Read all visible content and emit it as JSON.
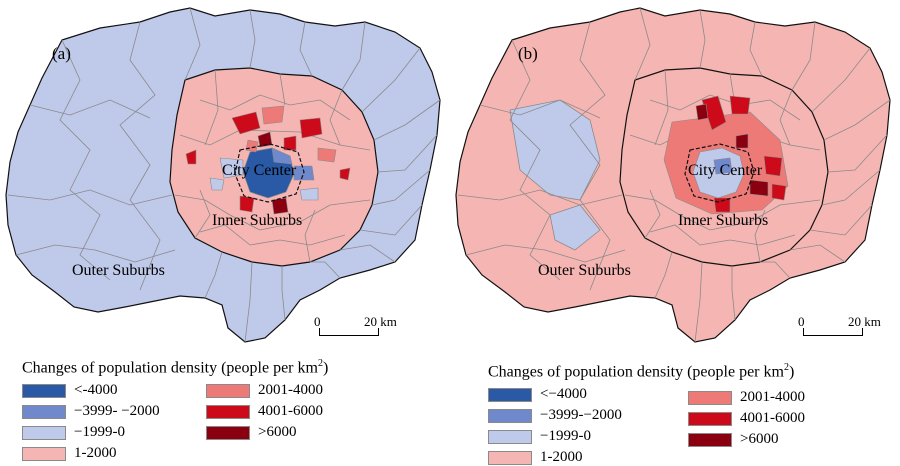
{
  "colors": {
    "lt_neg4000": "#2a5aa6",
    "neg3999_neg2000": "#7088cc",
    "neg1999_0": "#bfc9ea",
    "p1_2000": "#f5b6b3",
    "p2001_4000": "#ee7a78",
    "p4001_6000": "#cc0a1a",
    "gt6000": "#8b0010",
    "boundary": "#8a8a8a",
    "zone_boundary": "#111111"
  },
  "panels": [
    {
      "id": "a",
      "label": "(a)",
      "outer_fill": "neg1999_0",
      "inner_fill": "p1_2000",
      "zones": {
        "city_center": "City Center",
        "inner_suburbs": "Inner Suburbs",
        "outer_suburbs": "Outer Suburbs"
      },
      "scale": {
        "zero": "0",
        "km": "20 km"
      },
      "legend": {
        "title": "Changes of population density (people per km",
        "title_sup": "2",
        "title_end": ")",
        "items": [
          {
            "label": "<-4000",
            "color": "lt_neg4000"
          },
          {
            "label": "−3999- −2000",
            "color": "neg3999_neg2000"
          },
          {
            "label": "−1999-0",
            "color": "neg1999_0"
          },
          {
            "label": "1-2000",
            "color": "p1_2000"
          },
          {
            "label": "2001-4000",
            "color": "p2001_4000"
          },
          {
            "label": "4001-6000",
            "color": "p4001_6000"
          },
          {
            "label": ">6000",
            "color": "gt6000"
          }
        ]
      }
    },
    {
      "id": "b",
      "label": "(b)",
      "outer_fill": "p1_2000",
      "inner_fill": "p1_2000",
      "zones": {
        "city_center": "City Center",
        "inner_suburbs": "Inner Suburbs",
        "outer_suburbs": "Outer Suburbs"
      },
      "scale": {
        "zero": "0",
        "km": "20 km"
      },
      "legend": {
        "title": "Changes of population density (people per  km",
        "title_sup": "2",
        "title_end": ")",
        "items": [
          {
            "label": "<−4000",
            "color": "lt_neg4000"
          },
          {
            "label": "−3999-−2000",
            "color": "neg3999_neg2000"
          },
          {
            "label": "−1999-0",
            "color": "neg1999_0"
          },
          {
            "label": "1-2000",
            "color": "p1_2000"
          },
          {
            "label": "2001-4000",
            "color": "p2001_4000"
          },
          {
            "label": "4001-6000",
            "color": "p4001_6000"
          },
          {
            "label": ">6000",
            "color": "gt6000"
          }
        ]
      }
    }
  ]
}
